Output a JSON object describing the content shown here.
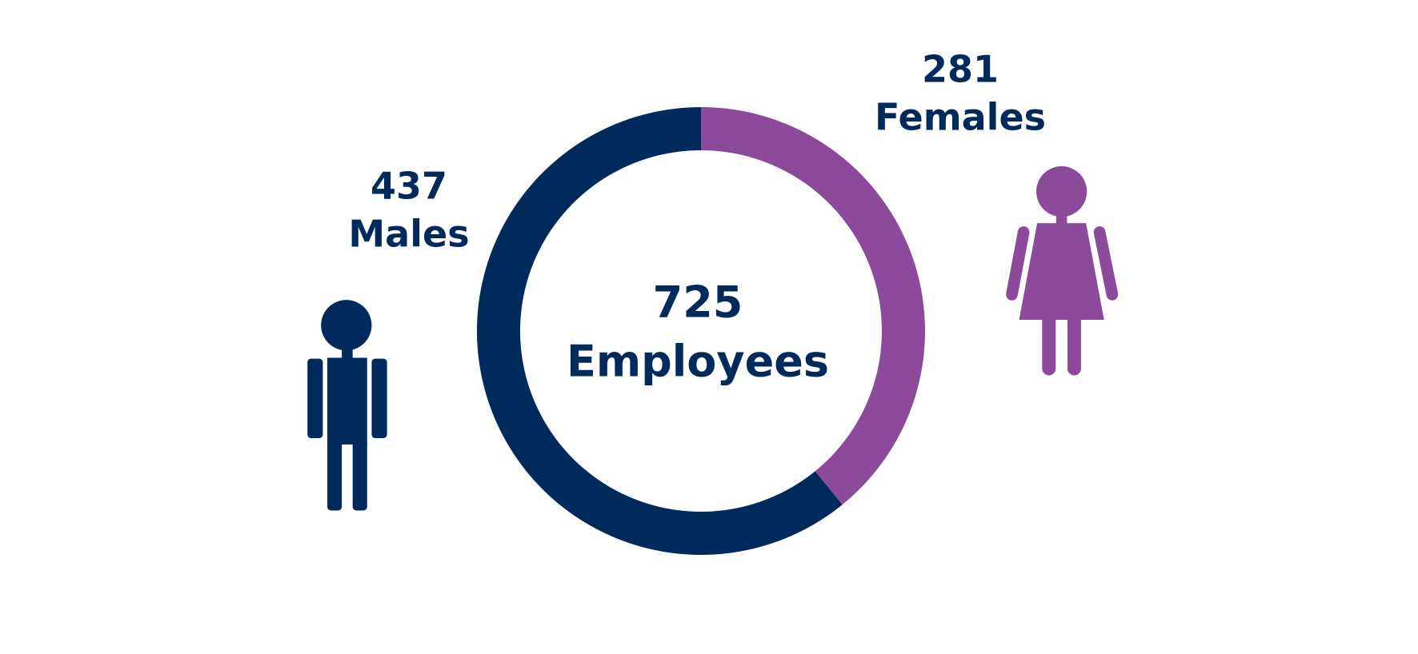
{
  "chart_data": {
    "type": "donut",
    "center_value": "725",
    "center_label": "Employees",
    "series": [
      {
        "name": "Females",
        "color": "#8c4a9a",
        "values": [
          281
        ]
      },
      {
        "name": "Males",
        "color": "#002a5c",
        "values": [
          437
        ]
      }
    ]
  }
}
